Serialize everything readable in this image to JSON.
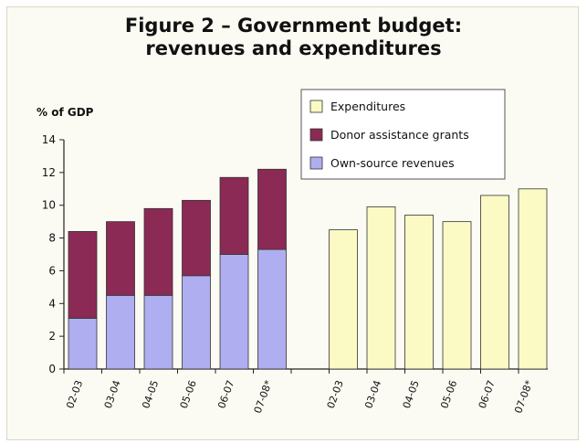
{
  "title": {
    "line1": "Figure 2 – Government budget:",
    "line2": "revenues and expenditures"
  },
  "chart_data": {
    "type": "bar",
    "ylabel": "% of GDP",
    "ylim": [
      0,
      14
    ],
    "yticks": [
      0,
      2,
      4,
      6,
      8,
      10,
      12,
      14
    ],
    "grid": false,
    "legend_position": "top-right",
    "stacked_group": {
      "categories": [
        "02-03",
        "03-04",
        "04-05",
        "05-06",
        "06-07",
        "07-08*"
      ],
      "series": [
        {
          "name": "Own-source revenues",
          "color": "#aeaef0",
          "values": [
            3.1,
            4.5,
            4.5,
            5.7,
            7.0,
            7.3
          ]
        },
        {
          "name": "Donor assistance grants",
          "color": "#8b2a55",
          "values": [
            5.3,
            4.5,
            5.3,
            4.6,
            4.7,
            4.9
          ]
        }
      ]
    },
    "expenditure_group": {
      "categories": [
        "02-03",
        "03-04",
        "04-05",
        "05-06",
        "06-07",
        "07-08*"
      ],
      "series": [
        {
          "name": "Expenditures",
          "color": "#fbfac4",
          "values": [
            8.5,
            9.9,
            9.4,
            9.0,
            10.6,
            11.0
          ]
        }
      ]
    },
    "legend": [
      {
        "label": "Expenditures",
        "color": "#fbfac4"
      },
      {
        "label": "Donor assistance grants",
        "color": "#8b2a55"
      },
      {
        "label": "Own-source revenues",
        "color": "#aeaef0"
      }
    ]
  }
}
